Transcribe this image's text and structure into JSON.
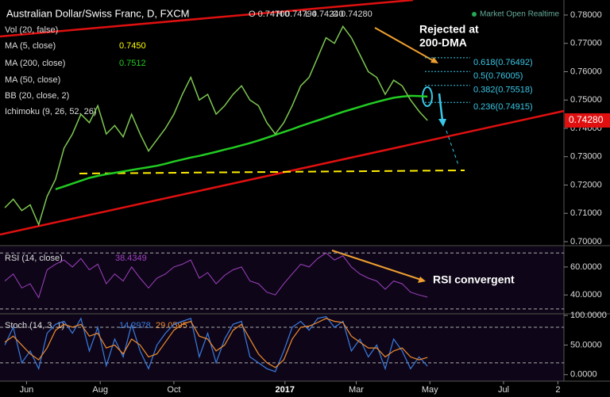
{
  "chart_data": {
    "type": "line",
    "title": "Australian Dollar/Swiss Franc, D, FXCM",
    "ohlc": [
      "O 0.74700",
      "H 0.74794",
      "L 0.74240",
      "C 0.74280"
    ],
    "status": "Market Open Realtime",
    "last_price": {
      "value": 0.7428,
      "label": "0.74280"
    },
    "color": "#7ec850",
    "indicators": [
      {
        "label": "Vol (20, false)"
      },
      {
        "label": "MA (5, close)",
        "value_label": "0.7450",
        "color": "#ffff00"
      },
      {
        "label": "MA (50, close)"
      },
      {
        "label": "BB (20, close, 2)"
      },
      {
        "label": "Ichimoku (9, 26, 52, 26)"
      }
    ],
    "annotations": [
      "Rejected at",
      "200-DMA",
      "RSI convergent"
    ],
    "fib_levels": [
      {
        "value": 0.76492,
        "label": "0.618(0.76492)"
      },
      {
        "value": 0.76005,
        "label": "0.5(0.76005)"
      },
      {
        "value": 0.75518,
        "label": "0.382(0.75518)"
      },
      {
        "value": 0.74915,
        "label": "0.236(0.74915)"
      }
    ],
    "x": [
      -18,
      -11,
      -4,
      3,
      10,
      17,
      24,
      31,
      38,
      45,
      52,
      59,
      66,
      73,
      80,
      87,
      94,
      101,
      108,
      115,
      122,
      129,
      136,
      143,
      150,
      157,
      164,
      171,
      178,
      185,
      192,
      199,
      206,
      213,
      220,
      227,
      234,
      241,
      248,
      255,
      262,
      269,
      276,
      283,
      290,
      297,
      304,
      311,
      318,
      325,
      332
    ],
    "values": [
      0.712,
      0.715,
      0.711,
      0.713,
      0.706,
      0.716,
      0.722,
      0.733,
      0.738,
      0.745,
      0.742,
      0.748,
      0.738,
      0.741,
      0.737,
      0.745,
      0.738,
      0.732,
      0.736,
      0.74,
      0.745,
      0.752,
      0.758,
      0.75,
      0.752,
      0.745,
      0.748,
      0.752,
      0.755,
      0.75,
      0.748,
      0.742,
      0.738,
      0.742,
      0.748,
      0.755,
      0.758,
      0.765,
      0.772,
      0.77,
      0.776,
      0.772,
      0.766,
      0.76,
      0.758,
      0.752,
      0.757,
      0.755,
      0.75,
      0.746,
      0.7428
    ],
    "series": [
      {
        "name": "MA (200, close)",
        "color": "#22cc22",
        "legend_value": "0.7512",
        "values": [
          null,
          null,
          null,
          null,
          null,
          null,
          0.7185,
          0.7195,
          0.7205,
          0.7215,
          0.7225,
          0.7232,
          0.7238,
          0.7243,
          0.7248,
          0.7253,
          0.7258,
          0.7263,
          0.7268,
          0.7275,
          0.7283,
          0.729,
          0.7297,
          0.7303,
          0.731,
          0.7317,
          0.7325,
          0.7332,
          0.734,
          0.7348,
          0.7357,
          0.7367,
          0.7377,
          0.7387,
          0.7397,
          0.7408,
          0.7418,
          0.7428,
          0.7438,
          0.7448,
          0.7458,
          0.7467,
          0.7476,
          0.7485,
          0.7493,
          0.7501,
          0.7508,
          0.7512,
          0.7515,
          0.7514,
          0.7512
        ]
      }
    ],
    "xlim": [
      -22,
      445
    ],
    "xticks": [
      {
        "value": 0,
        "label": "Jun"
      },
      {
        "value": 61,
        "label": "Aug"
      },
      {
        "value": 122,
        "label": "Oct"
      },
      {
        "value": 214,
        "label": "2017"
      },
      {
        "value": 273,
        "label": "Mar"
      },
      {
        "value": 334,
        "label": "May"
      },
      {
        "value": 395,
        "label": "Jul"
      },
      {
        "value": 440,
        "label": "2"
      }
    ],
    "ylim": [
      0.6986,
      0.7853
    ],
    "yticks": [
      {
        "value": 0.78,
        "label": "0.78000"
      },
      {
        "value": 0.77,
        "label": "0.77000"
      },
      {
        "value": 0.76,
        "label": "0.76000"
      },
      {
        "value": 0.75,
        "label": "0.75000"
      },
      {
        "value": 0.74,
        "label": "0.74000"
      },
      {
        "value": 0.73,
        "label": "0.73000"
      },
      {
        "value": 0.72,
        "label": "0.72000"
      },
      {
        "value": 0.71,
        "label": "0.71000"
      },
      {
        "value": 0.7,
        "label": "0.70000"
      }
    ],
    "rsi": {
      "label": "RSI (14, close)",
      "color": "#a040c0",
      "value_label": "38.4349",
      "values": [
        50,
        55,
        45,
        48,
        38,
        58,
        62,
        65,
        60,
        66,
        58,
        62,
        48,
        55,
        50,
        60,
        52,
        45,
        52,
        55,
        60,
        62,
        65,
        52,
        56,
        48,
        54,
        58,
        60,
        50,
        48,
        42,
        40,
        48,
        55,
        62,
        60,
        66,
        70,
        65,
        68,
        60,
        55,
        52,
        50,
        44,
        50,
        48,
        42,
        40,
        38.4349
      ],
      "ylim": [
        26.5,
        74.7
      ],
      "levels": [
        70,
        30
      ],
      "yticks": [
        {
          "value": 60,
          "label": "60.0000"
        },
        {
          "value": 40,
          "label": "40.0000"
        }
      ]
    },
    "stoch": {
      "label": "Stoch (14, 3, 1)",
      "series": [
        {
          "color": "#3a7be0",
          "value_label": "14.2978",
          "values": [
            50,
            80,
            20,
            40,
            10,
            70,
            85,
            90,
            70,
            95,
            40,
            80,
            15,
            60,
            30,
            85,
            40,
            10,
            50,
            70,
            85,
            90,
            95,
            30,
            70,
            20,
            60,
            85,
            90,
            30,
            20,
            10,
            5,
            40,
            80,
            90,
            75,
            95,
            98,
            80,
            90,
            40,
            60,
            30,
            50,
            10,
            60,
            40,
            10,
            30,
            14.2978
          ]
        },
        {
          "color": "#f08c30",
          "value_label": "29.0595",
          "values": [
            55,
            65,
            50,
            35,
            25,
            45,
            75,
            85,
            80,
            85,
            65,
            70,
            45,
            50,
            35,
            60,
            50,
            30,
            35,
            55,
            75,
            85,
            90,
            65,
            60,
            40,
            50,
            75,
            85,
            60,
            35,
            20,
            12,
            25,
            60,
            80,
            82,
            88,
            95,
            90,
            88,
            65,
            55,
            45,
            45,
            30,
            40,
            45,
            30,
            25,
            29.0595
          ]
        }
      ],
      "ylim": [
        -11,
        101.4
      ],
      "levels": [
        80,
        20
      ],
      "yticks": [
        {
          "value": 100,
          "label": "100.0000"
        },
        {
          "value": 50,
          "label": "50.0000"
        },
        {
          "value": 0,
          "label": "0.0000"
        }
      ]
    }
  }
}
